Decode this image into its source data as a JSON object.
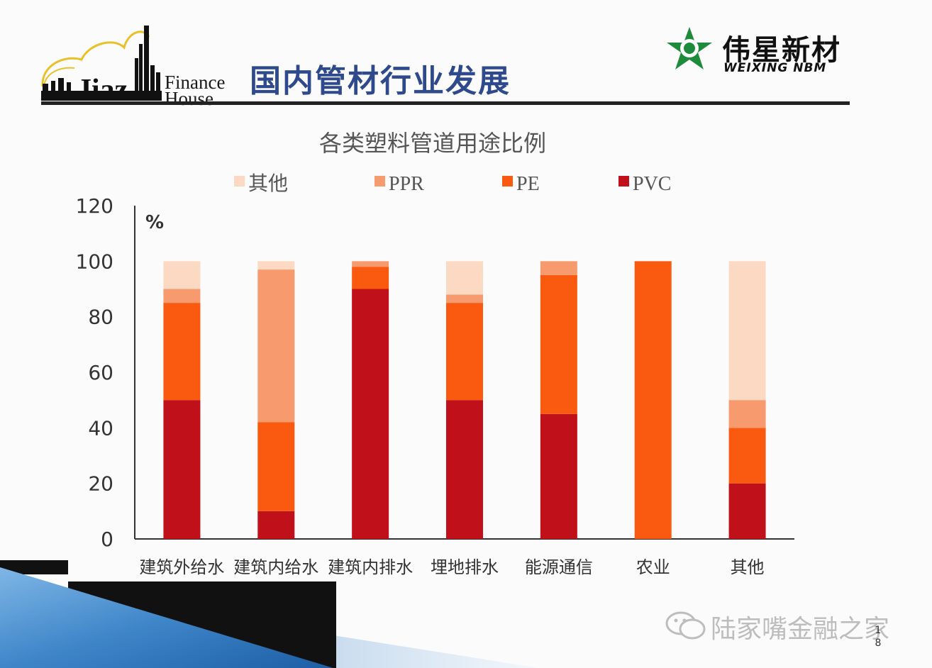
{
  "slide": {
    "title": "国内管材行业发展",
    "logo_left_text": {
      "line1": "Finance",
      "line2": "House",
      "skyline": "Jiaz"
    },
    "logo_right": {
      "cn": "伟星新材",
      "en": "WEIXING NBM",
      "color": "#1e8a3c"
    },
    "watermark": "陆家嘴金融之家",
    "page_number": {
      "d1": "1",
      "d2": "8"
    }
  },
  "chart_data": {
    "type": "bar",
    "stacked": true,
    "title": "各类塑料管道用途比例",
    "unit_label": "%",
    "ylim": [
      0,
      120
    ],
    "yticks": [
      0,
      20,
      40,
      60,
      80,
      100,
      120
    ],
    "categories": [
      "建筑外给水",
      "建筑内给水",
      "建筑内排水",
      "埋地排水",
      "能源通信",
      "农业",
      "其他"
    ],
    "series": [
      {
        "name": "PVC",
        "color": "#c0101a",
        "values": [
          50,
          10,
          90,
          50,
          45,
          0,
          20
        ]
      },
      {
        "name": "PE",
        "color": "#f95a10",
        "values": [
          35,
          32,
          8,
          35,
          50,
          100,
          20
        ]
      },
      {
        "name": "PPR",
        "color": "#f79a6e",
        "values": [
          5,
          55,
          2,
          3,
          5,
          0,
          10
        ]
      },
      {
        "name": "其他",
        "color": "#fcd9c3",
        "values": [
          10,
          3,
          0,
          12,
          0,
          0,
          50
        ]
      }
    ],
    "legend_order": [
      "其他",
      "PPR",
      "PE",
      "PVC"
    ],
    "legend_position": "top",
    "grid": false
  }
}
